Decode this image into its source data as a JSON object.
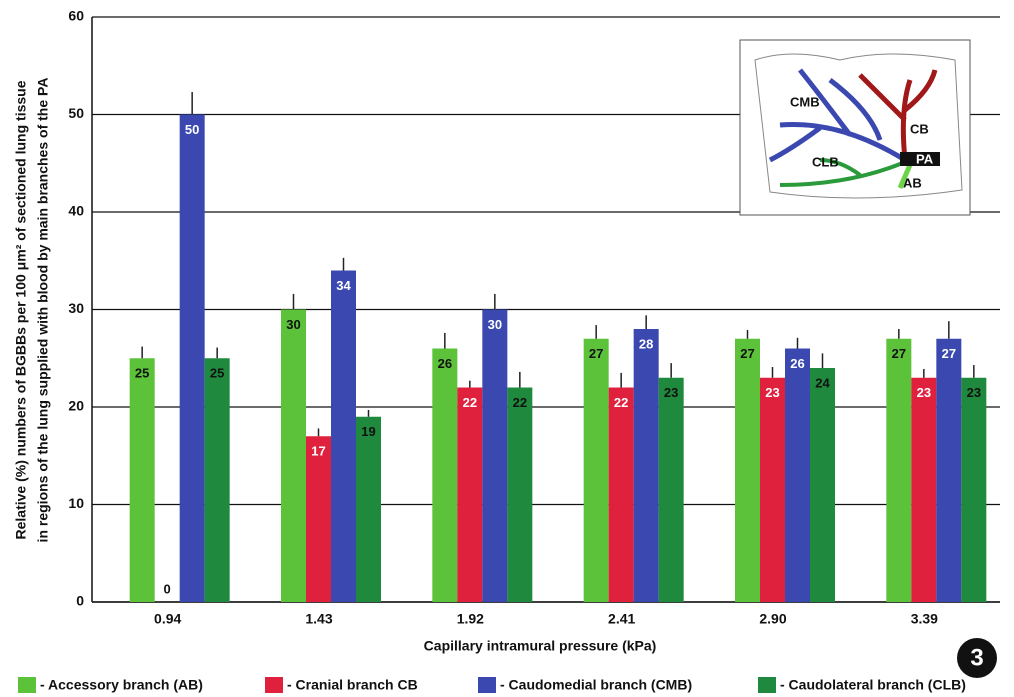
{
  "chart_data": {
    "type": "bar",
    "y_label_lines": [
      "Relative (%) numbers of BGBBs per 100 μm² of sectioned lung tissue",
      "in regions of the lung supplied with blood by main branches of the PA"
    ],
    "x_label": "Capillary intramural pressure (kPa)",
    "categories": [
      "0.94",
      "1.43",
      "1.92",
      "2.41",
      "2.90",
      "3.39"
    ],
    "series": [
      {
        "name": "- Accessory branch (AB)",
        "color": "#5cc23a",
        "values": [
          25,
          30,
          26,
          27,
          27,
          27
        ],
        "errors": [
          1.2,
          1.6,
          1.6,
          1.4,
          0.9,
          1.0
        ]
      },
      {
        "name": "- Cranial branch CB",
        "color": "#e0213d",
        "values": [
          0,
          17,
          22,
          22,
          23,
          23
        ],
        "errors": [
          0,
          0.8,
          0.7,
          1.5,
          1.1,
          0.9
        ]
      },
      {
        "name": "- Caudomedial branch (CMB)",
        "color": "#3a48b0",
        "values": [
          50,
          34,
          30,
          28,
          26,
          27
        ],
        "errors": [
          2.3,
          1.3,
          1.6,
          1.4,
          1.1,
          1.8
        ]
      },
      {
        "name": "- Caudolateral branch (CLB)",
        "color": "#1f8a3e",
        "values": [
          25,
          19,
          22,
          23,
          24,
          23
        ],
        "errors": [
          1.1,
          0.7,
          1.6,
          1.5,
          1.5,
          1.3
        ]
      }
    ],
    "ylim": [
      0,
      60
    ],
    "yticks": [
      0,
      10,
      20,
      30,
      40,
      50,
      60
    ],
    "grid": true,
    "inset_labels": [
      "CMB",
      "CB",
      "CLB",
      "AB",
      "PA"
    ],
    "figure_number": "3"
  }
}
